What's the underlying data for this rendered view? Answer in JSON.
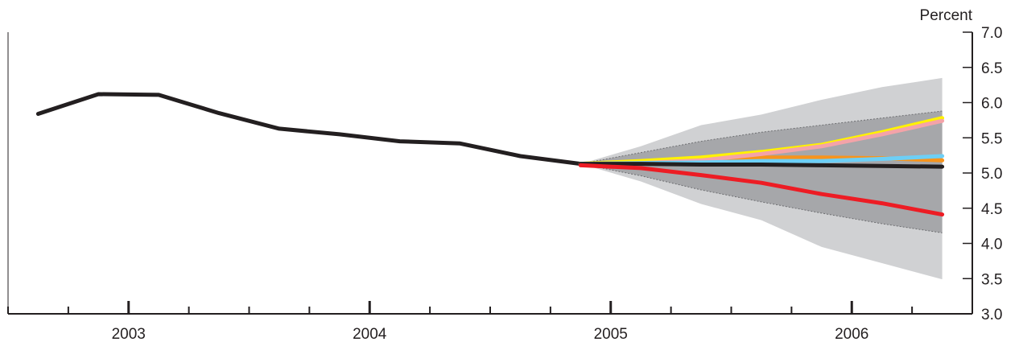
{
  "chart_data": {
    "type": "line",
    "ylabel": "Percent",
    "ylim": [
      3.0,
      7.0
    ],
    "y_ticks": [
      "3.0",
      "3.5",
      "4.0",
      "4.5",
      "5.0",
      "5.5",
      "6.0",
      "6.5",
      "7.0"
    ],
    "y_axis_side": "right",
    "x_range": [
      2002.5,
      2006.5
    ],
    "year_labels": [
      {
        "label": "2003",
        "x": 2003.0
      },
      {
        "label": "2004",
        "x": 2004.0
      },
      {
        "label": "2005",
        "x": 2005.0
      },
      {
        "label": "2006",
        "x": 2006.0
      }
    ],
    "grid": false,
    "fan_bands": [
      {
        "color": "#d0d1d3",
        "x": [
          2004.875,
          2005.125,
          2005.375,
          2005.625,
          2005.875,
          2006.125,
          2006.375
        ],
        "upper": [
          5.13,
          5.38,
          5.68,
          5.83,
          6.04,
          6.22,
          6.35
        ],
        "lower": [
          5.13,
          4.88,
          4.56,
          4.33,
          3.95,
          3.72,
          3.49
        ]
      },
      {
        "color": "#a6a7aa",
        "x": [
          2004.875,
          2005.125,
          2005.375,
          2005.625,
          2005.875,
          2006.125,
          2006.375
        ],
        "upper": [
          5.13,
          5.29,
          5.45,
          5.58,
          5.68,
          5.78,
          5.88
        ],
        "lower": [
          5.13,
          4.96,
          4.76,
          4.59,
          4.43,
          4.28,
          4.15
        ]
      }
    ],
    "history": {
      "color": "#231f20",
      "x": [
        2002.625,
        2002.875,
        2003.125,
        2003.375,
        2003.625,
        2003.875,
        2004.125,
        2004.375,
        2004.625,
        2004.875
      ],
      "values": [
        5.84,
        6.12,
        6.11,
        5.85,
        5.63,
        5.55,
        5.45,
        5.42,
        5.24,
        5.13
      ]
    },
    "series": [
      {
        "color": "#f7941d",
        "x": [
          2004.875,
          2005.125,
          2005.375,
          2005.625,
          2005.875,
          2006.125,
          2006.375
        ],
        "values": [
          5.13,
          5.16,
          5.19,
          5.22,
          5.22,
          5.21,
          5.18
        ]
      },
      {
        "color": "#fff200",
        "x": [
          2004.875,
          2005.125,
          2005.375,
          2005.625,
          2005.875,
          2006.125,
          2006.375
        ],
        "values": [
          5.13,
          5.17,
          5.22,
          5.3,
          5.4,
          5.58,
          5.78
        ]
      },
      {
        "color": "#f4a3a8",
        "x": [
          2004.875,
          2005.125,
          2005.375,
          2005.625,
          2005.875,
          2006.125,
          2006.375
        ],
        "values": [
          5.13,
          5.14,
          5.18,
          5.27,
          5.38,
          5.55,
          5.74
        ]
      },
      {
        "color": "#6dcff6",
        "x": [
          2004.875,
          2005.125,
          2005.375,
          2005.625,
          2005.875,
          2006.125,
          2006.375
        ],
        "values": [
          5.13,
          5.14,
          5.15,
          5.17,
          5.17,
          5.2,
          5.24
        ]
      },
      {
        "color": "#231f20",
        "x": [
          2004.875,
          2005.125,
          2005.375,
          2005.625,
          2005.875,
          2006.125,
          2006.375
        ],
        "values": [
          5.13,
          5.13,
          5.12,
          5.12,
          5.11,
          5.1,
          5.09
        ]
      },
      {
        "color": "#ed1c24",
        "x": [
          2004.875,
          2005.125,
          2005.375,
          2005.625,
          2005.875,
          2006.125,
          2006.375
        ],
        "values": [
          5.11,
          5.07,
          4.97,
          4.86,
          4.7,
          4.57,
          4.41
        ]
      }
    ]
  }
}
